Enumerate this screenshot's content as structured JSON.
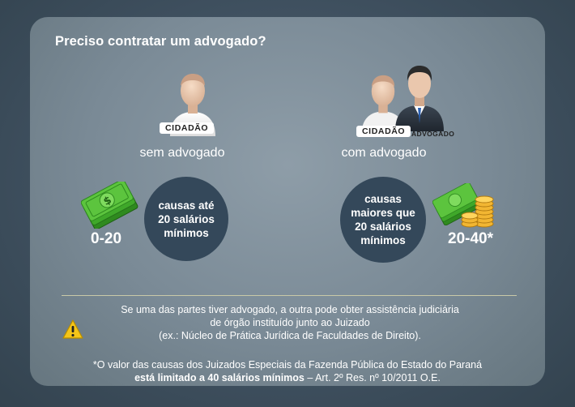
{
  "title": "Preciso contratar um advogado?",
  "left": {
    "badge": "CIDADÃO",
    "caption": "sem advogado",
    "bubble": [
      "causas até",
      "20 salários",
      "mínimos"
    ],
    "range": "0-20"
  },
  "right": {
    "badge": "CIDADÃO",
    "badge2": "ADVOGADO",
    "caption": "com advogado",
    "bubble": [
      "causas",
      "maiores que",
      "20 salários",
      "mínimos"
    ],
    "range": "20-40*"
  },
  "notice": [
    "Se uma das partes tiver advogado, a outra pode obter assistência judiciária",
    "de órgão instituído junto ao Juizado",
    "(ex.: Núcleo de Prática Jurídica de Faculdades de Direito)."
  ],
  "footnote": {
    "line1": "*O valor das causas dos Juizados Especiais da Fazenda Pública do Estado do Paraná",
    "bold": "está limitado a 40 salários mínimos",
    "rest": " – Art. 2º Res. nº 10/2011 O.E."
  },
  "icons": [
    "citizen-icon",
    "lawyer-icon",
    "money-icon",
    "coins-icon",
    "warning-icon"
  ]
}
